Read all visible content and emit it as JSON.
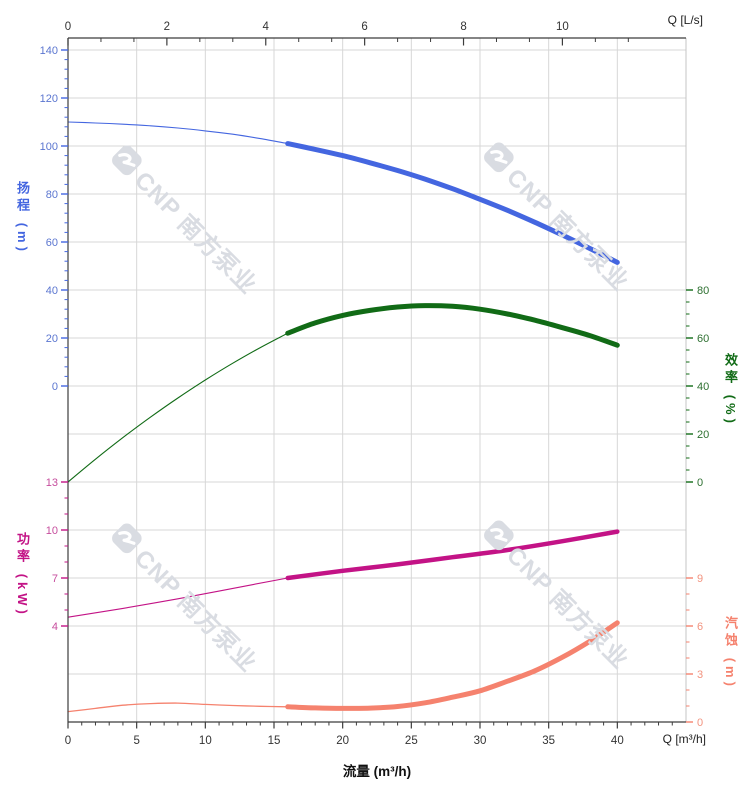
{
  "watermark": {
    "text": "CNP 南方泵业"
  },
  "chart_data": {
    "type": "line",
    "title": "",
    "legend": "none",
    "grid": true,
    "x_axis_bottom": {
      "title": "流量 (m³/h)",
      "unit_label": "Q [m³/h]",
      "range": [
        0,
        45
      ],
      "major_ticks": [
        0,
        5,
        10,
        15,
        20,
        25,
        30,
        35,
        40
      ],
      "minor_step": 1,
      "minor_max": 44
    },
    "x_axis_top": {
      "unit_label": "Q [L/s]",
      "range": [
        0,
        12.5
      ],
      "major_ticks": [
        0,
        2,
        4,
        6,
        8,
        10
      ],
      "minors_per_interval": 2,
      "minor_max": 11.34,
      "lps_to_m3h": 3.6
    },
    "y_axes": [
      {
        "id": "head",
        "title": "扬程 (m)",
        "side": "left",
        "color": "#4466e0",
        "label_color": "#5b76d0",
        "range": [
          0,
          140
        ],
        "major_ticks": [
          140,
          120,
          100,
          80,
          60,
          40,
          20,
          0
        ],
        "minor_step": 4
      },
      {
        "id": "efficiency",
        "title": "效率 (%)",
        "side": "right",
        "color": "#116b16",
        "label_color": "#2e7031",
        "range": [
          0,
          80
        ],
        "major_ticks": [
          80,
          60,
          40,
          20,
          0
        ],
        "minor_step": 5
      },
      {
        "id": "power",
        "title": "功率 (kW)",
        "side": "left",
        "color": "#c31386",
        "label_color": "#c64d9d",
        "range": [
          4,
          13
        ],
        "major_ticks": [
          13,
          10,
          7,
          4
        ],
        "minor_step": 1
      },
      {
        "id": "npsh",
        "title": "汽蚀 (m)",
        "side": "right",
        "color": "#f5826e",
        "label_color": "#f2937f",
        "range": [
          0,
          9
        ],
        "major_ticks": [
          9,
          6,
          3,
          0
        ],
        "minor_step": 1
      }
    ],
    "series": [
      {
        "name": "扬程",
        "axis": "head",
        "color": "#4466e0",
        "duty_start": 16,
        "points": [
          [
            0,
            110
          ],
          [
            2,
            109.6
          ],
          [
            4,
            109.1
          ],
          [
            6,
            108.4
          ],
          [
            8,
            107.5
          ],
          [
            10,
            106.3
          ],
          [
            12,
            104.9
          ],
          [
            14,
            103.1
          ],
          [
            16,
            101
          ],
          [
            18,
            98.6
          ],
          [
            20,
            96
          ],
          [
            22,
            93
          ],
          [
            24,
            89.8
          ],
          [
            26,
            86.2
          ],
          [
            28,
            82.2
          ],
          [
            30,
            77.8
          ],
          [
            32,
            73.2
          ],
          [
            34,
            68.2
          ],
          [
            36,
            62.9
          ],
          [
            38,
            57.3
          ],
          [
            40,
            51.5
          ]
        ]
      },
      {
        "name": "效率",
        "axis": "efficiency",
        "color": "#116b16",
        "duty_start": 16,
        "points": [
          [
            0,
            0
          ],
          [
            2,
            9.5
          ],
          [
            4,
            18.5
          ],
          [
            6,
            27
          ],
          [
            8,
            35
          ],
          [
            10,
            42.5
          ],
          [
            12,
            49.5
          ],
          [
            14,
            56
          ],
          [
            16,
            62
          ],
          [
            18,
            66.3
          ],
          [
            20,
            69.4
          ],
          [
            22,
            71.5
          ],
          [
            24,
            72.9
          ],
          [
            26,
            73.5
          ],
          [
            28,
            73.2
          ],
          [
            30,
            72
          ],
          [
            32,
            70
          ],
          [
            34,
            67.4
          ],
          [
            36,
            64.3
          ],
          [
            38,
            61
          ],
          [
            40,
            57
          ]
        ]
      },
      {
        "name": "功率",
        "axis": "power",
        "color": "#c31386",
        "duty_start": 16,
        "points": [
          [
            0,
            4.55
          ],
          [
            4,
            5.1
          ],
          [
            8,
            5.7
          ],
          [
            12,
            6.35
          ],
          [
            16,
            7
          ],
          [
            20,
            7.45
          ],
          [
            24,
            7.85
          ],
          [
            28,
            8.3
          ],
          [
            32,
            8.75
          ],
          [
            36,
            9.3
          ],
          [
            40,
            9.9
          ]
        ]
      },
      {
        "name": "汽蚀",
        "axis": "npsh",
        "color": "#f5826e",
        "duty_start": 16,
        "points": [
          [
            0,
            0.65
          ],
          [
            2,
            0.85
          ],
          [
            4,
            1.05
          ],
          [
            6,
            1.15
          ],
          [
            8,
            1.18
          ],
          [
            10,
            1.1
          ],
          [
            12,
            1.03
          ],
          [
            14,
            0.98
          ],
          [
            16,
            0.95
          ],
          [
            18,
            0.88
          ],
          [
            20,
            0.85
          ],
          [
            22,
            0.87
          ],
          [
            24,
            0.97
          ],
          [
            26,
            1.2
          ],
          [
            28,
            1.55
          ],
          [
            30,
            1.95
          ],
          [
            32,
            2.55
          ],
          [
            34,
            3.2
          ],
          [
            36,
            4.05
          ],
          [
            38,
            5.05
          ],
          [
            40,
            6.2
          ]
        ]
      }
    ]
  }
}
